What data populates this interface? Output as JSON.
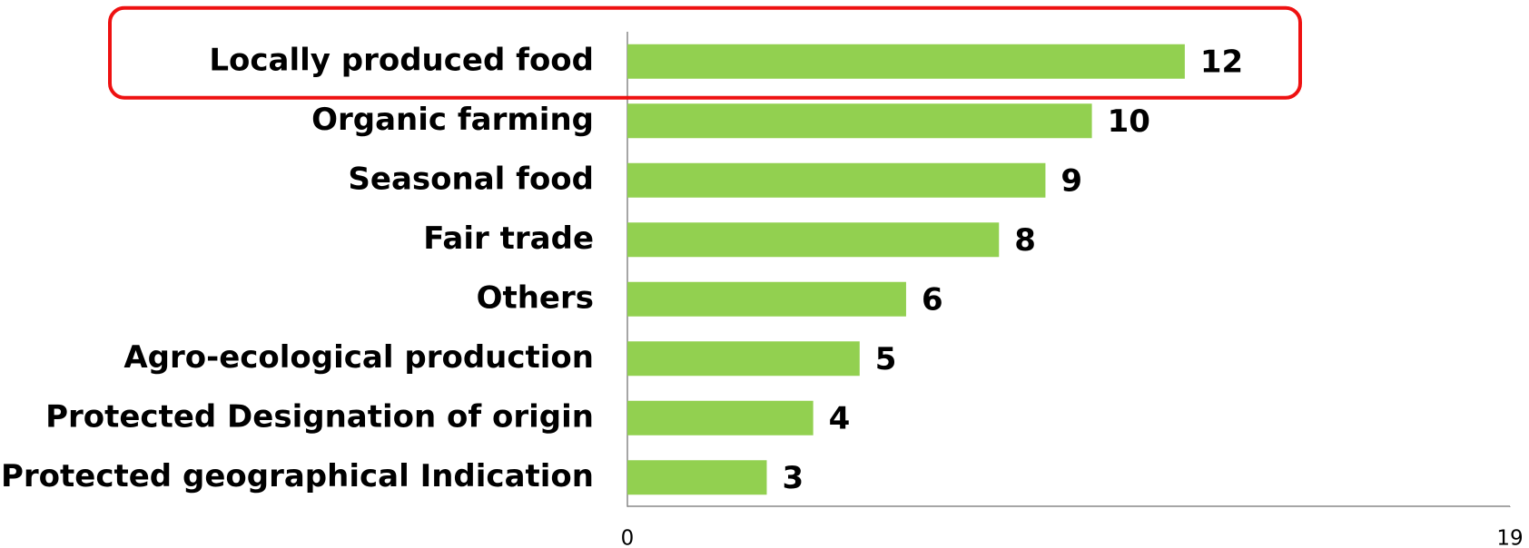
{
  "chart_data": {
    "type": "bar",
    "orientation": "horizontal",
    "categories": [
      "Locally produced food",
      "Organic farming",
      "Seasonal food",
      "Fair trade",
      "Others",
      "Agro-ecological production",
      "Protected Designation of origin",
      "Protected geographical Indication"
    ],
    "values": [
      12,
      10,
      9,
      8,
      6,
      5,
      4,
      3
    ],
    "color": "#92d050",
    "xlim": [
      0,
      19
    ],
    "xticks": [
      0,
      19
    ],
    "grid": false,
    "highlight": 0
  }
}
